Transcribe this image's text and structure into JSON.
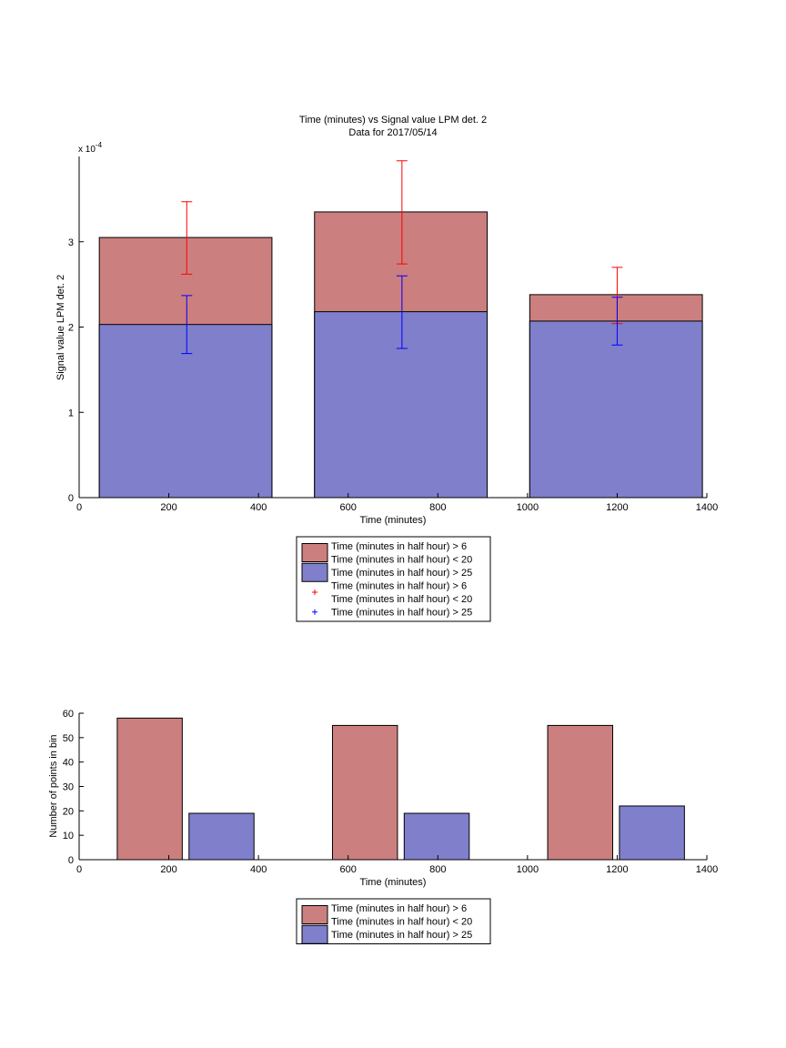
{
  "chart_data": [
    {
      "type": "bar",
      "title": "Time (minutes) vs Signal value LPM det. 2",
      "subtitle": "Data for 2017/05/14",
      "xlabel": "Time (minutes)",
      "ylabel": "Signal value LPM det. 2",
      "y_exponent_label": "x 10",
      "y_exponent_power": "-4",
      "xlim": [
        0,
        1400
      ],
      "ylim": [
        0,
        4
      ],
      "x_ticks": [
        "0",
        "200",
        "400",
        "600",
        "800",
        "1000",
        "1200",
        "1400"
      ],
      "y_ticks": [
        "0",
        "1",
        "2",
        "3"
      ],
      "bins": [
        {
          "x_start": 45,
          "x_end": 430,
          "center": 240
        },
        {
          "x_start": 525,
          "x_end": 910,
          "center": 720
        },
        {
          "x_start": 1005,
          "x_end": 1390,
          "center": 1200
        }
      ],
      "series": [
        {
          "name": "Time (minutes in half hour) > 6\nTime (minutes in half hour) < 20",
          "color": "#cc7f7f",
          "errcolor": "#ff0000",
          "values": [
            3.05,
            3.35,
            2.38
          ],
          "err_low": [
            2.62,
            2.74,
            2.04
          ],
          "err_high": [
            3.47,
            3.95,
            2.7
          ]
        },
        {
          "name": "Time (minutes in half hour) > 25",
          "color": "#7f7fcc",
          "errcolor": "#0000ff",
          "values": [
            2.03,
            2.18,
            2.07
          ],
          "err_low": [
            1.69,
            1.75,
            1.79
          ],
          "err_high": [
            2.37,
            2.6,
            2.35
          ]
        }
      ],
      "legend": {
        "placement": "below",
        "entries": [
          {
            "kind": "patch",
            "color": "#cc7f7f",
            "lines": [
              "Time (minutes in half hour) > 6",
              "Time (minutes in half hour) < 20"
            ]
          },
          {
            "kind": "patch",
            "color": "#7f7fcc",
            "lines": [
              "Time (minutes in half hour) > 25"
            ]
          },
          {
            "kind": "marker",
            "color": "#ff0000",
            "lines": [
              "Time (minutes in half hour) > 6",
              "Time (minutes in half hour) < 20"
            ]
          },
          {
            "kind": "marker",
            "color": "#0000ff",
            "lines": [
              "Time (minutes in half hour) > 25"
            ]
          }
        ]
      }
    },
    {
      "type": "bar",
      "xlabel": "Time (minutes)",
      "ylabel": "Number of points in bin",
      "xlim": [
        0,
        1400
      ],
      "ylim": [
        0,
        60
      ],
      "x_ticks": [
        "0",
        "200",
        "400",
        "600",
        "800",
        "1000",
        "1200",
        "1400"
      ],
      "y_ticks": [
        "0",
        "10",
        "20",
        "30",
        "40",
        "50",
        "60"
      ],
      "bars": [
        {
          "x_start": 85,
          "x_end": 230,
          "value": 58,
          "series": 0
        },
        {
          "x_start": 245,
          "x_end": 390,
          "value": 19,
          "series": 1
        },
        {
          "x_start": 565,
          "x_end": 710,
          "value": 55,
          "series": 0
        },
        {
          "x_start": 725,
          "x_end": 870,
          "value": 19,
          "series": 1
        },
        {
          "x_start": 1045,
          "x_end": 1190,
          "value": 55,
          "series": 0
        },
        {
          "x_start": 1205,
          "x_end": 1350,
          "value": 22,
          "series": 1
        }
      ],
      "series": [
        {
          "name": "Time (minutes in half hour) > 6\nTime (minutes in half hour) < 20",
          "color": "#cc7f7f"
        },
        {
          "name": "Time (minutes in half hour) > 25",
          "color": "#7f7fcc"
        }
      ],
      "legend": {
        "placement": "below",
        "entries": [
          {
            "kind": "patch",
            "color": "#cc7f7f",
            "lines": [
              "Time (minutes in half hour) > 6",
              "Time (minutes in half hour) < 20"
            ]
          },
          {
            "kind": "patch",
            "color": "#7f7fcc",
            "lines": [
              "Time (minutes in half hour) > 25"
            ]
          }
        ]
      }
    }
  ]
}
